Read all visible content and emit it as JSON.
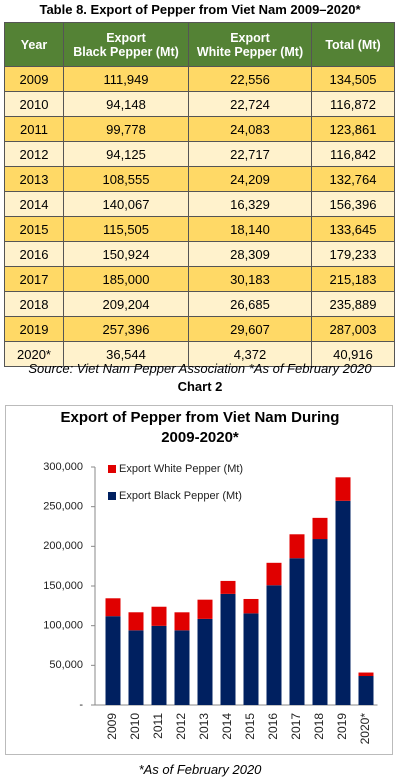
{
  "table": {
    "title": "Table 8. Export of Pepper from Viet Nam 2009–2020*",
    "header": [
      "Year",
      "Export\nBlack Pepper (Mt)",
      "Export\nWhite Pepper (Mt)",
      "Total (Mt)"
    ],
    "rows": [
      [
        "2009",
        "111,949",
        "22,556",
        "134,505"
      ],
      [
        "2010",
        "94,148",
        "22,724",
        "116,872"
      ],
      [
        "2011",
        "99,778",
        "24,083",
        "123,861"
      ],
      [
        "2012",
        "94,125",
        "22,717",
        "116,842"
      ],
      [
        "2013",
        "108,555",
        "24,209",
        "132,764"
      ],
      [
        "2014",
        "140,067",
        "16,329",
        "156,396"
      ],
      [
        "2015",
        "115,505",
        "18,140",
        "133,645"
      ],
      [
        "2016",
        "150,924",
        "28,309",
        "179,233"
      ],
      [
        "2017",
        "185,000",
        "30,183",
        "215,183"
      ],
      [
        "2018",
        "209,204",
        "26,685",
        "235,889"
      ],
      [
        "2019",
        "257,396",
        "29,607",
        "287,003"
      ],
      [
        "2020*",
        "36,544",
        "4,372",
        "40,916"
      ]
    ],
    "source": "Source: Viet Nam Pepper Association *As of February 2020"
  },
  "chart_label": "Chart 2",
  "chart_data": {
    "type": "bar",
    "stacked": true,
    "title": "Export of Pepper from Viet Nam During 2009-2020*",
    "categories": [
      "2009",
      "2010",
      "2011",
      "2012",
      "2013",
      "2014",
      "2015",
      "2016",
      "2017",
      "2018",
      "2019",
      "2020*"
    ],
    "series": [
      {
        "name": "Export Black Pepper (Mt)",
        "color": "#002060",
        "values": [
          111949,
          94148,
          99778,
          94125,
          108555,
          140067,
          115505,
          150924,
          185000,
          209204,
          257396,
          36544
        ]
      },
      {
        "name": "Export White Pepper (Mt)",
        "color": "#e00000",
        "values": [
          22556,
          22724,
          24083,
          22717,
          24209,
          16329,
          18140,
          28309,
          30183,
          26685,
          29607,
          4372
        ]
      }
    ],
    "ylim": [
      0,
      300000
    ],
    "yticks": [
      {
        "value": 0,
        "label": "-"
      },
      {
        "value": 50000,
        "label": "50,000"
      },
      {
        "value": 100000,
        "label": "100,000"
      },
      {
        "value": 150000,
        "label": "150,000"
      },
      {
        "value": 200000,
        "label": "200,000"
      },
      {
        "value": 250000,
        "label": "250,000"
      },
      {
        "value": 300000,
        "label": "300,000"
      }
    ],
    "grid": false,
    "legend": "top-left"
  },
  "footnote": "*As of February 2020"
}
